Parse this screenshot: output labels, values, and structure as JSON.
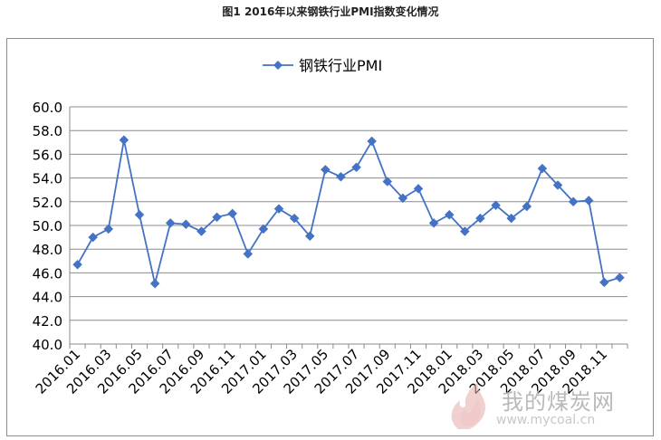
{
  "caption": "图1  2016年以来钢铁行业PMI指数变化情况",
  "chart_data": {
    "type": "line",
    "title": "",
    "xlabel": "",
    "ylabel": "",
    "ylim": [
      40.0,
      60.0
    ],
    "yticks": [
      "40.0",
      "42.0",
      "44.0",
      "46.0",
      "48.0",
      "50.0",
      "52.0",
      "54.0",
      "56.0",
      "58.0",
      "60.0"
    ],
    "grid": "horizontal",
    "legend": "top-center",
    "series_color": "#4472c4",
    "categories": [
      "2016.01",
      "2016.02",
      "2016.03",
      "2016.04",
      "2016.05",
      "2016.06",
      "2016.07",
      "2016.08",
      "2016.09",
      "2016.10",
      "2016.11",
      "2016.12",
      "2017.01",
      "2017.02",
      "2017.03",
      "2017.04",
      "2017.05",
      "2017.06",
      "2017.07",
      "2017.08",
      "2017.09",
      "2017.10",
      "2017.11",
      "2017.12",
      "2018.01",
      "2018.02",
      "2018.03",
      "2018.04",
      "2018.05",
      "2018.06",
      "2018.07",
      "2018.08",
      "2018.09",
      "2018.10",
      "2018.11",
      "2018.12"
    ],
    "tick_labels": [
      "2016.01",
      "2016.03",
      "2016.05",
      "2016.07",
      "2016.09",
      "2016.11",
      "2017.01",
      "2017.03",
      "2017.05",
      "2017.07",
      "2017.09",
      "2017.11",
      "2018.01",
      "2018.03",
      "2018.05",
      "2018.07",
      "2018.09",
      "2018.11"
    ],
    "series": [
      {
        "name": "钢铁行业PMI",
        "values": [
          46.7,
          49.0,
          49.7,
          57.2,
          50.9,
          45.1,
          50.2,
          50.1,
          49.5,
          50.7,
          51.0,
          47.6,
          49.7,
          51.4,
          50.6,
          49.1,
          54.7,
          54.1,
          54.9,
          57.1,
          53.7,
          52.3,
          53.1,
          50.2,
          50.9,
          49.5,
          50.6,
          51.7,
          50.6,
          51.6,
          54.8,
          53.4,
          52.0,
          52.1,
          45.2,
          45.6
        ]
      }
    ]
  },
  "watermark": {
    "text": "我的煤炭网",
    "url": "www.mycoal.cn"
  }
}
